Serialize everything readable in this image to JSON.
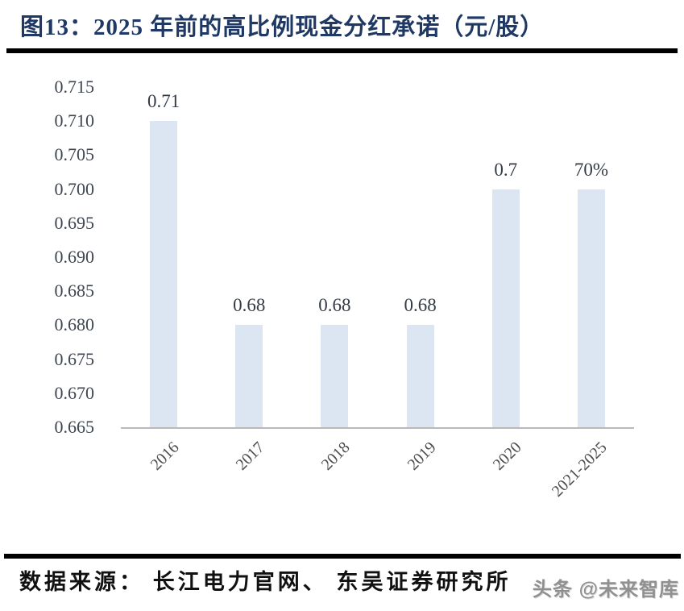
{
  "figure": {
    "title": "图13：2025 年前的高比例现金分红承诺（元/股）"
  },
  "chart_data": {
    "type": "bar",
    "title": "图13：2025 年前的高比例现金分红承诺（元/股）",
    "categories": [
      "2016",
      "2017",
      "2018",
      "2019",
      "2020",
      "2021-2025"
    ],
    "values": [
      0.71,
      0.68,
      0.68,
      0.68,
      0.7,
      0.7
    ],
    "bar_labels": [
      "0.71",
      "0.68",
      "0.68",
      "0.68",
      "0.7",
      "70%"
    ],
    "xlabel": "",
    "ylabel": "",
    "ylim": [
      0.665,
      0.715
    ],
    "ytick_step": 0.005,
    "yticks": [
      "0.715",
      "0.710",
      "0.705",
      "0.700",
      "0.695",
      "0.690",
      "0.685",
      "0.680",
      "0.675",
      "0.670",
      "0.665"
    ],
    "grid": false,
    "legend": "none",
    "bar_color": "#dce6f2",
    "axis_color": "#b9b9b9"
  },
  "footer": {
    "source": "数据来源： 长江电力官网、 东吴证券研究所",
    "watermark": "头条 @未来智库"
  },
  "colors": {
    "title_text": "#1f3864",
    "tick_text": "#3d4651",
    "value_label_text": "#333b46",
    "x_label_text": "#4c4c4c",
    "divider": "#000000",
    "watermark_text": "#909090"
  }
}
